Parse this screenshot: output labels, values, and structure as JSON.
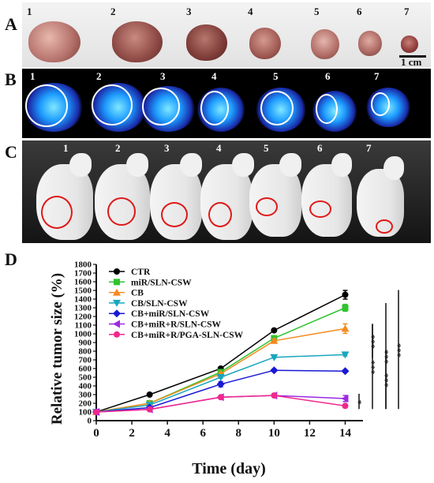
{
  "panels": {
    "A": {
      "letter": "A",
      "numbers": [
        "1",
        "2",
        "3",
        "4",
        "5",
        "6",
        "7"
      ],
      "scale_label": "1 cm"
    },
    "B": {
      "letter": "B",
      "numbers": [
        "1",
        "2",
        "3",
        "4",
        "5",
        "6",
        "7"
      ]
    },
    "C": {
      "letter": "C",
      "numbers": [
        "1",
        "2",
        "3",
        "4",
        "5",
        "6",
        "7"
      ]
    },
    "D": {
      "letter": "D"
    }
  },
  "colors": {
    "tumor_tissue": "#b4706a",
    "ring_red": "#e01818",
    "scan_cyan": "#1d9bff"
  },
  "chart_data": {
    "type": "line",
    "xlabel": "Time (day)",
    "ylabel": "Relative tumor size (%)",
    "xlim": [
      0,
      15
    ],
    "ylim": [
      0,
      1800
    ],
    "xticks": [
      "0",
      "2",
      "4",
      "6",
      "8",
      "10",
      "12",
      "14"
    ],
    "yticks": [
      "0",
      "100",
      "200",
      "300",
      "400",
      "500",
      "600",
      "700",
      "800",
      "900",
      "1000",
      "1100",
      "1200",
      "1300",
      "1400",
      "1500",
      "1600",
      "1700",
      "1800"
    ],
    "x": [
      0,
      3,
      7,
      10,
      14
    ],
    "legend_position": "top-left",
    "grid": false,
    "series": [
      {
        "name": "CTR",
        "color": "#000000",
        "marker": "circle",
        "values": [
          100,
          300,
          600,
          1040,
          1450
        ],
        "errors": [
          0,
          0,
          15,
          15,
          50
        ]
      },
      {
        "name": "miR/SLN-CSW",
        "color": "#2fc42f",
        "marker": "square",
        "values": [
          100,
          200,
          560,
          950,
          1300
        ],
        "errors": [
          0,
          0,
          15,
          20,
          40
        ]
      },
      {
        "name": "CB",
        "color": "#f58a1f",
        "marker": "triangle-up",
        "values": [
          100,
          200,
          540,
          920,
          1060
        ],
        "errors": [
          0,
          0,
          15,
          20,
          55
        ]
      },
      {
        "name": "CB/SLN-CSW",
        "color": "#19a6bd",
        "marker": "triangle-down",
        "values": [
          100,
          180,
          500,
          730,
          760
        ],
        "errors": [
          0,
          0,
          10,
          10,
          15
        ]
      },
      {
        "name": "CB+miR/SLN-CSW",
        "color": "#1818d6",
        "marker": "diamond",
        "values": [
          100,
          150,
          420,
          580,
          570
        ],
        "errors": [
          0,
          0,
          30,
          15,
          15
        ]
      },
      {
        "name": "CB+miR+R/SLN-CSW",
        "color": "#9b2ae0",
        "marker": "triangle-left",
        "values": [
          100,
          130,
          270,
          290,
          255
        ],
        "errors": [
          0,
          0,
          10,
          10,
          35
        ]
      },
      {
        "name": "CB+miR+R/PGA-SLN-CSW",
        "color": "#f0288c",
        "marker": "circle",
        "values": [
          100,
          130,
          270,
          290,
          170
        ],
        "errors": [
          0,
          0,
          10,
          10,
          20
        ]
      }
    ],
    "significance": [
      {
        "label": "***",
        "from": "CTR",
        "to": "CB+miR+R/PGA-SLN-CSW"
      },
      {
        "label": "***",
        "from": "miR/SLN-CSW",
        "to": "CB+miR+R/PGA-SLN-CSW"
      },
      {
        "label": "***",
        "from": "CB",
        "to": "CB+miR+R/PGA-SLN-CSW"
      },
      {
        "label": "***",
        "from": "CB",
        "to": "CB/SLN-CSW"
      },
      {
        "label": "***",
        "from": "CB/SLN-CSW",
        "to": "CB+miR+R/PGA-SLN-CSW"
      },
      {
        "label": "*",
        "from": "CB+miR+R/SLN-CSW",
        "to": "CB+miR+R/PGA-SLN-CSW"
      }
    ]
  }
}
